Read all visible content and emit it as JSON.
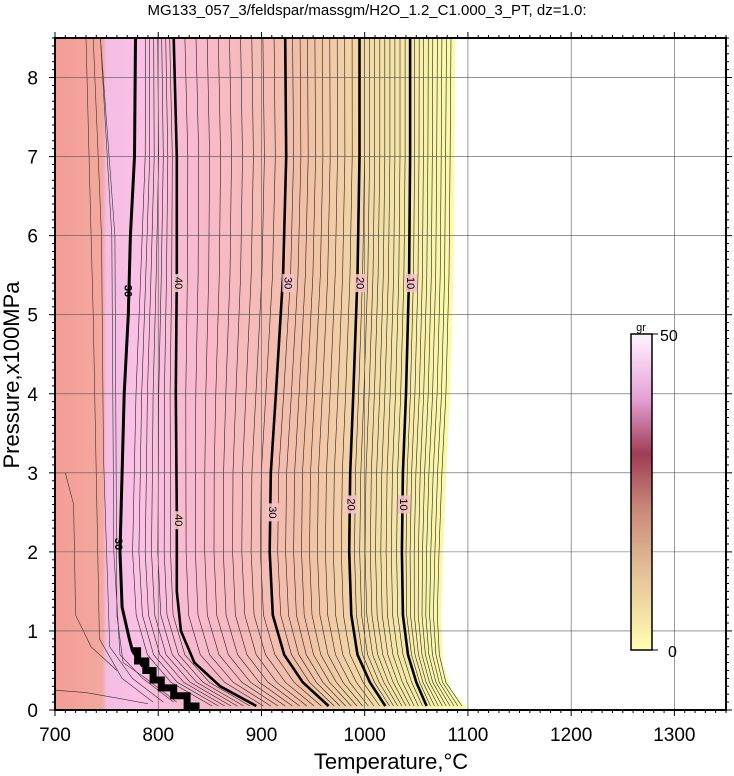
{
  "chart_data": {
    "type": "heatmap",
    "title": "MG133_057_3/feldspar/massgm/H2O_1.2_C1.000_3_PT, dz=1.0:",
    "xlabel": "Temperature,°C",
    "ylabel": "Pressure,x100MPa",
    "xlim": [
      700,
      1350
    ],
    "ylim": [
      0,
      8.5
    ],
    "x_ticks": [
      "700",
      "800",
      "900",
      "1000",
      "1100",
      "1200",
      "1300"
    ],
    "y_ticks": [
      "0",
      "1",
      "2",
      "3",
      "4",
      "5",
      "6",
      "7",
      "8"
    ],
    "grid": true,
    "colorbar": {
      "unit": "gr",
      "min": 0,
      "max": 50,
      "min_label": "0",
      "max_label": "50",
      "colors": [
        "#ffffb0",
        "#e6c69a",
        "#c88a78",
        "#9a3c52",
        "#e6a0d8",
        "#fff0ff"
      ],
      "position": "right"
    },
    "contour_interval": 1,
    "labeled_contours": [
      {
        "level": 40,
        "label": "40",
        "points": [
          [
            815,
            8.5
          ],
          [
            818,
            7.0
          ],
          [
            818,
            5.5
          ],
          [
            817,
            4.0
          ],
          [
            818,
            2.5
          ],
          [
            818,
            1.5
          ],
          [
            822,
            1.0
          ],
          [
            835,
            0.6
          ],
          [
            860,
            0.3
          ],
          [
            895,
            0.05
          ]
        ],
        "label_at": [
          [
            820,
            5.4
          ],
          [
            820,
            2.4
          ]
        ]
      },
      {
        "level": 30,
        "label": "30",
        "points": [
          [
            923,
            8.5
          ],
          [
            924,
            7.0
          ],
          [
            921,
            5.5
          ],
          [
            914,
            4.0
          ],
          [
            909,
            3.0
          ],
          [
            908,
            2.0
          ],
          [
            911,
            1.2
          ],
          [
            922,
            0.7
          ],
          [
            940,
            0.35
          ],
          [
            965,
            0.05
          ]
        ],
        "label_at": [
          [
            926,
            5.4
          ],
          [
            911,
            2.5
          ]
        ]
      },
      {
        "level": 20,
        "label": "20",
        "points": [
          [
            995,
            8.5
          ],
          [
            995,
            7.0
          ],
          [
            993,
            5.5
          ],
          [
            989,
            4.0
          ],
          [
            986,
            3.0
          ],
          [
            985,
            2.0
          ],
          [
            987,
            1.2
          ],
          [
            993,
            0.7
          ],
          [
            1005,
            0.35
          ],
          [
            1020,
            0.05
          ]
        ],
        "label_at": [
          [
            996,
            5.4
          ],
          [
            987,
            2.6
          ]
        ]
      },
      {
        "level": 10,
        "label": "10",
        "points": [
          [
            1044,
            8.5
          ],
          [
            1044,
            7.0
          ],
          [
            1043,
            5.5
          ],
          [
            1040,
            4.0
          ],
          [
            1037,
            3.0
          ],
          [
            1036,
            2.0
          ],
          [
            1037,
            1.2
          ],
          [
            1042,
            0.7
          ],
          [
            1050,
            0.35
          ],
          [
            1060,
            0.05
          ]
        ],
        "label_at": [
          [
            1045,
            5.4
          ],
          [
            1038,
            2.6
          ]
        ]
      }
    ],
    "zero_boundary_T": [
      [
        1088,
        8.5
      ],
      [
        1087,
        7.0
      ],
      [
        1086,
        5.5
      ],
      [
        1083,
        4.0
      ],
      [
        1079,
        3.0
      ],
      [
        1076,
        2.0
      ],
      [
        1074,
        1.2
      ],
      [
        1076,
        0.6
      ],
      [
        1084,
        0.25
      ],
      [
        1100,
        0.02
      ]
    ],
    "solidus_line": {
      "label": "30",
      "points": [
        [
          778,
          8.5
        ],
        [
          777,
          7.0
        ],
        [
          773,
          6.0
        ],
        [
          771,
          5.0
        ],
        [
          767,
          4.0
        ],
        [
          765,
          3.0
        ],
        [
          763,
          2.0
        ],
        [
          765,
          1.3
        ],
        [
          772,
          0.9
        ],
        [
          775,
          0.75
        ],
        [
          785,
          0.55
        ],
        [
          800,
          0.35
        ],
        [
          815,
          0.2
        ],
        [
          840,
          0.05
        ]
      ],
      "label_at": [
        [
          771,
          5.3
        ],
        [
          762,
          2.1
        ]
      ]
    },
    "pale_label": "20"
  }
}
